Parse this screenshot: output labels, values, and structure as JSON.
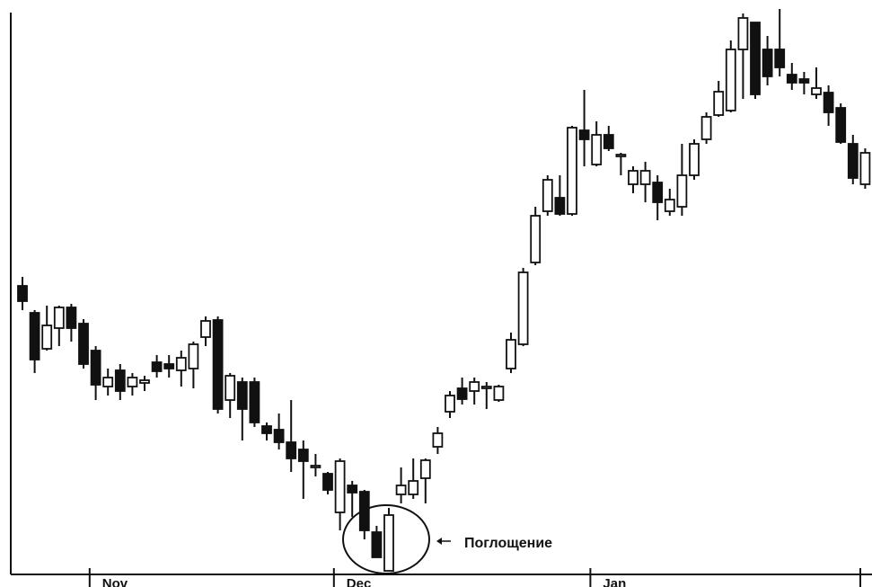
{
  "chart_data": {
    "type": "candlestick",
    "categories": [
      null,
      null,
      null,
      null,
      null,
      null,
      "Nov",
      null,
      null,
      null,
      null,
      null,
      null,
      null,
      null,
      null,
      null,
      null,
      null,
      null,
      null,
      null,
      null,
      null,
      null,
      null,
      "Dec",
      null,
      null,
      null,
      null,
      null,
      null,
      null,
      null,
      null,
      null,
      null,
      null,
      null,
      null,
      null,
      null,
      null,
      null,
      null,
      null,
      "Jan",
      null,
      null,
      null,
      null,
      null,
      null,
      null,
      null,
      null,
      null,
      null,
      null,
      null,
      null,
      null,
      null,
      null,
      null,
      null,
      null,
      null,
      null
    ],
    "open": [
      322,
      292,
      252,
      275,
      298,
      280,
      250,
      210,
      228,
      210,
      214,
      237,
      235,
      228,
      230,
      265,
      284,
      195,
      215,
      215,
      166,
      162,
      148,
      140,
      120,
      113,
      70,
      100,
      93,
      48,
      5,
      90,
      90,
      108,
      143,
      182,
      208,
      205,
      208,
      195,
      230,
      257,
      348,
      405,
      420,
      402,
      495,
      457,
      490,
      466,
      435,
      435,
      437,
      405,
      410,
      445,
      485,
      512,
      517,
      585,
      615,
      585,
      585,
      557,
      552,
      535,
      537,
      520,
      480,
      435
    ],
    "high": [
      332,
      295,
      300,
      300,
      302,
      285,
      255,
      230,
      235,
      225,
      222,
      245,
      245,
      250,
      260,
      288,
      288,
      225,
      220,
      220,
      170,
      180,
      195,
      150,
      135,
      115,
      130,
      105,
      95,
      55,
      75,
      120,
      130,
      130,
      165,
      205,
      220,
      220,
      215,
      212,
      270,
      342,
      410,
      445,
      445,
      500,
      540,
      505,
      500,
      470,
      455,
      460,
      445,
      430,
      480,
      485,
      515,
      550,
      595,
      625,
      615,
      600,
      630,
      570,
      560,
      565,
      545,
      525,
      490,
      475
    ],
    "low": [
      295,
      225,
      250,
      255,
      260,
      230,
      195,
      200,
      195,
      200,
      205,
      220,
      220,
      210,
      208,
      255,
      180,
      175,
      150,
      165,
      150,
      140,
      115,
      85,
      110,
      90,
      50,
      65,
      40,
      20,
      5,
      80,
      85,
      80,
      135,
      175,
      190,
      190,
      185,
      193,
      225,
      255,
      345,
      400,
      400,
      400,
      455,
      455,
      472,
      445,
      425,
      415,
      395,
      400,
      400,
      440,
      480,
      510,
      515,
      530,
      530,
      545,
      555,
      540,
      535,
      530,
      500,
      480,
      435,
      430
    ],
    "close": [
      305,
      240,
      278,
      298,
      275,
      235,
      212,
      220,
      205,
      220,
      217,
      227,
      230,
      242,
      257,
      283,
      185,
      222,
      185,
      170,
      158,
      148,
      130,
      127,
      122,
      95,
      127,
      92,
      50,
      20,
      67,
      100,
      105,
      128,
      158,
      200,
      196,
      215,
      210,
      210,
      262,
      337,
      400,
      440,
      402,
      498,
      485,
      490,
      475,
      468,
      450,
      450,
      415,
      418,
      445,
      480,
      510,
      538,
      585,
      620,
      535,
      555,
      565,
      548,
      548,
      542,
      515,
      482,
      442,
      470
    ],
    "up_color": "#ffffff",
    "down_color": "#111111",
    "ylim": [
      0,
      640
    ],
    "annotation": "Поглощение"
  }
}
